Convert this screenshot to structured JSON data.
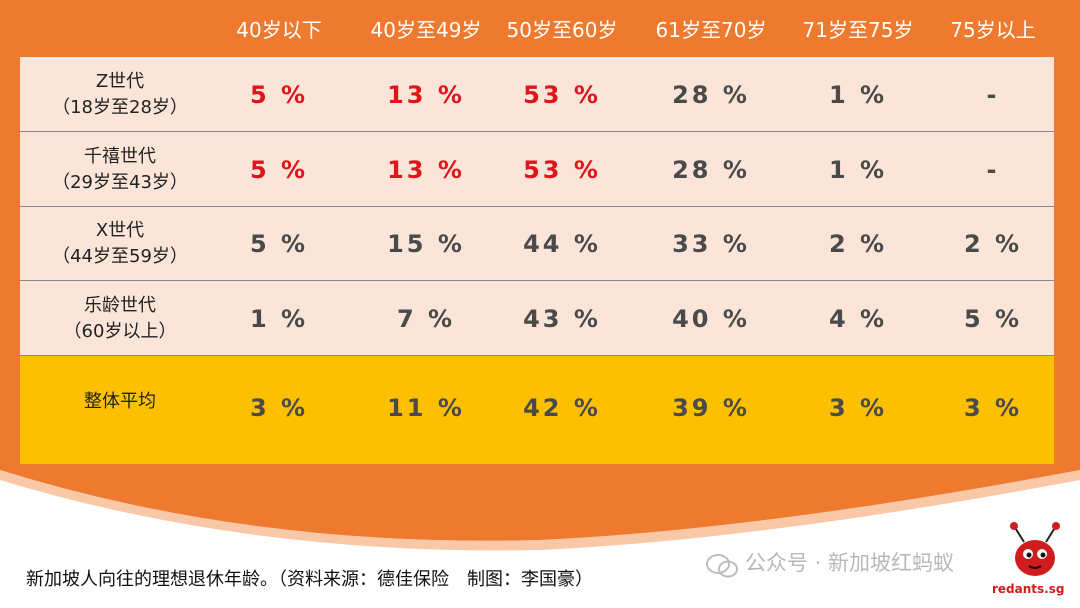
{
  "colors": {
    "background_orange": "#ee7a30",
    "row_bg": "#fbe5d8",
    "average_row_bg": "#fdc000",
    "highlight_red": "#e0141b",
    "text_gray": "#4a4a4a"
  },
  "caption": "新加坡人向往的理想退休年龄。（资料来源：德佳保险　制图：李国豪）",
  "watermark": "公众号 · 新加坡红蚂蚁",
  "logo_text": "redants.sg",
  "chart_data": {
    "type": "table",
    "columns": [
      "40岁以下",
      "40岁至49岁",
      "50岁至60岁",
      "61岁至70岁",
      "71岁至75岁",
      "75岁以上"
    ],
    "rows": [
      {
        "label_line1": "Z世代",
        "label_line2": "（18岁至28岁）",
        "values": [
          "5 %",
          "13 %",
          "53 %",
          "28 %",
          "1 %",
          "-"
        ],
        "highlight": [
          true,
          true,
          true,
          false,
          false,
          false
        ]
      },
      {
        "label_line1": "千禧世代",
        "label_line2": "（29岁至43岁）",
        "values": [
          "5 %",
          "13 %",
          "53 %",
          "28 %",
          "1 %",
          "-"
        ],
        "highlight": [
          true,
          true,
          true,
          false,
          false,
          false
        ]
      },
      {
        "label_line1": "X世代",
        "label_line2": "（44岁至59岁）",
        "values": [
          "5 %",
          "15 %",
          "44 %",
          "33 %",
          "2 %",
          "2 %"
        ],
        "highlight": [
          false,
          false,
          false,
          false,
          false,
          false
        ]
      },
      {
        "label_line1": "乐龄世代",
        "label_line2": "（60岁以上）",
        "values": [
          "1 %",
          "7 %",
          "43 %",
          "40 %",
          "4 %",
          "5 %"
        ],
        "highlight": [
          false,
          false,
          false,
          false,
          false,
          false
        ]
      },
      {
        "label_line1": "整体平均",
        "label_line2": "",
        "values": [
          "3 %",
          "11 %",
          "42 %",
          "39 %",
          "3 %",
          "3 %"
        ],
        "highlight": [
          false,
          false,
          false,
          false,
          false,
          false
        ]
      }
    ]
  }
}
